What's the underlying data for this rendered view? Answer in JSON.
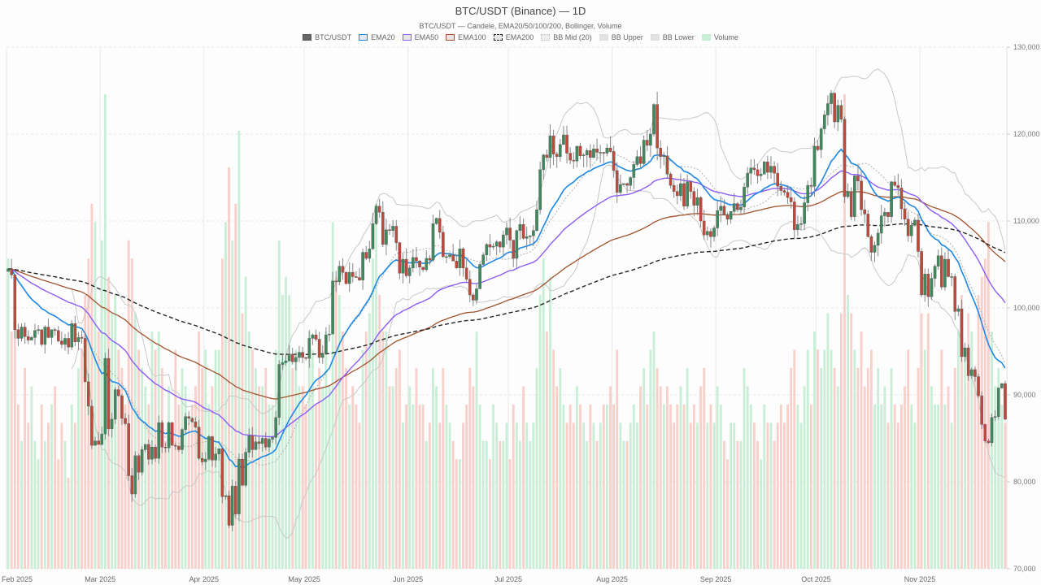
{
  "header": {
    "title": "BTC/USDT (Binance) — 1D",
    "subtitle": "BTC/USDT — Candele, EMA20/50/100/200, Bollinger, Volume"
  },
  "legend": [
    {
      "label": "BTC/USDT",
      "fill": "#666666",
      "border": "#555555",
      "style": "solid"
    },
    {
      "label": "EMA20",
      "fill": "#e6e6e6",
      "border": "#1e88e5",
      "style": "solid"
    },
    {
      "label": "EMA50",
      "fill": "#e6e6e6",
      "border": "#8b5cf6",
      "style": "solid"
    },
    {
      "label": "EMA100",
      "fill": "#e6e6e6",
      "border": "#a0522d",
      "style": "solid"
    },
    {
      "label": "EMA200",
      "fill": "#e6e6e6",
      "border": "#222222",
      "style": "dashed"
    },
    {
      "label": "BB Mid (20)",
      "fill": "#eeeeee",
      "border": "#bbbbbb",
      "style": "dotted"
    },
    {
      "label": "BB Upper",
      "fill": "#e3e3e3",
      "border": "#dddddd",
      "style": "solid"
    },
    {
      "label": "BB Lower",
      "fill": "#e3e3e3",
      "border": "#dddddd",
      "style": "solid"
    },
    {
      "label": "Volume",
      "fill": "#c8efd6",
      "border": "#c8efd6",
      "style": "solid"
    }
  ],
  "colors": {
    "up": "#3f8a5c",
    "down": "#c0493b",
    "wick": "#888888",
    "vol_up": "#c8efd6",
    "vol_down": "#f9cfc9",
    "ema20": "#1e88e5",
    "ema50": "#8b5cf6",
    "ema100": "#a0522d",
    "ema200": "#222222",
    "bb": "#c8c8c8",
    "bb_mid": "#aaaaaa",
    "grid": "#e8e8e8"
  },
  "chart_data": {
    "type": "candlestick",
    "title": "BTC/USDT (Binance) — 1D",
    "subtitle": "BTC/USDT — Candele, EMA20/50/100/200, Bollinger, Volume",
    "xlabel": "",
    "ylabel": "",
    "ylim": [
      70000,
      130000
    ],
    "y_ticks": [
      "70,000",
      "80,000",
      "90,000",
      "100,000",
      "110,000",
      "120,000",
      "130,000"
    ],
    "y_tick_values": [
      70000,
      80000,
      90000,
      100000,
      110000,
      120000,
      130000
    ],
    "x_ticks": [
      {
        "label": "Feb 2025",
        "day": 0
      },
      {
        "label": "Mar 2025",
        "day": 28
      },
      {
        "label": "Apr 2025",
        "day": 59
      },
      {
        "label": "May 2025",
        "day": 89
      },
      {
        "label": "Jun 2025",
        "day": 120
      },
      {
        "label": "Jul 2025",
        "day": 150
      },
      {
        "label": "Aug 2025",
        "day": 181
      },
      {
        "label": "Sep 2025",
        "day": 212
      },
      {
        "label": "Oct 2025",
        "day": 242
      },
      {
        "label": "Nov 2025",
        "day": 273
      }
    ],
    "start_date": "2025-02-01",
    "grid": true,
    "legend_position": "top",
    "series_names": [
      "BTC/USDT",
      "EMA20",
      "EMA50",
      "EMA100",
      "EMA200",
      "BB Mid (20)",
      "BB Upper",
      "BB Lower",
      "Volume"
    ],
    "closes": [
      104500,
      103800,
      97500,
      96500,
      97800,
      96700,
      96300,
      96600,
      97400,
      97500,
      95800,
      97800,
      96600,
      97500,
      97400,
      96200,
      95800,
      96500,
      95500,
      98200,
      96100,
      96600,
      96500,
      91500,
      88700,
      84200,
      84700,
      84300,
      85500,
      94200,
      86100,
      87200,
      90600,
      89900,
      87300,
      86700,
      80700,
      78600,
      83000,
      81100,
      83700,
      84300,
      82600,
      84000,
      82700,
      86800,
      84000,
      83900,
      86800,
      84200,
      84100,
      83700,
      86000,
      87500,
      87300,
      86900,
      86300,
      82700,
      82300,
      82600,
      85200,
      82500,
      83200,
      83800,
      78300,
      78400,
      75000,
      79500,
      76300,
      82600,
      79600,
      83400,
      85300,
      83700,
      84600,
      84400,
      85000,
      84000,
      84900,
      85100,
      87400,
      93500,
      93700,
      93900,
      94700,
      93800,
      94300,
      94900,
      94300,
      94200,
      96500,
      96900,
      96400,
      94300,
      94800,
      96900,
      97000,
      103100,
      103000,
      104800,
      104100,
      102800,
      104100,
      103600,
      103500,
      103200,
      106400,
      105700,
      106800,
      109700,
      111700,
      111000,
      107300,
      109000,
      108900,
      109400,
      107500,
      104000,
      105600,
      103700,
      104600,
      105800,
      105400,
      104700,
      104400,
      105700,
      105500,
      109700,
      110300,
      108700,
      105900,
      105900,
      106100,
      105400,
      104600,
      106800,
      104600,
      103300,
      101500,
      100900,
      102200,
      105000,
      106100,
      107300,
      107000,
      107100,
      107600,
      107000,
      108400,
      109200,
      107800,
      105700,
      108900,
      109600,
      108000,
      108200,
      108300,
      108900,
      111300,
      115900,
      117600,
      117300,
      119800,
      117700,
      117400,
      118800,
      119900,
      117800,
      117000,
      116900,
      118600,
      117500,
      117600,
      118100,
      117300,
      118300,
      117900,
      117900,
      117800,
      118400,
      118000,
      115800,
      113300,
      114200,
      114300,
      114100,
      115000,
      116500,
      117400,
      116600,
      119300,
      118700,
      120000,
      123400,
      118400,
      117400,
      117500,
      115400,
      114100,
      113400,
      112900,
      114300,
      111700,
      114500,
      113400,
      111800,
      112700,
      110000,
      108400,
      108800,
      108200,
      109200,
      111200,
      111700,
      110700,
      110200,
      111100,
      112000,
      111300,
      111600,
      113900,
      115500,
      116100,
      115900,
      115200,
      115400,
      116800,
      115600,
      116300,
      115500,
      114000,
      113500,
      113300,
      112700,
      112200,
      109000,
      109600,
      109700,
      112100,
      114100,
      114000,
      118600,
      118200,
      120600,
      122200,
      123500,
      124700,
      121400,
      123300,
      121700,
      112800,
      113400,
      110500,
      115200,
      114600,
      111300,
      110800,
      108200,
      106400,
      107200,
      108600,
      110600,
      111000,
      110500,
      114500,
      114100,
      113800,
      111400,
      110200,
      108300,
      109500,
      110100,
      106500,
      101500,
      103900,
      101300,
      103400,
      104800,
      106000,
      102400,
      105600,
      103600,
      103600,
      99600,
      99900,
      94400,
      95400,
      92200,
      92900,
      92100,
      89900,
      86600,
      84700,
      84500,
      87400,
      87500,
      90800,
      91300,
      87200
    ],
    "opens_offset_note": "open = previous close",
    "highs_extra_pct": 0.012,
    "lows_extra_pct": 0.012,
    "volumes": [
      17,
      13,
      15,
      9,
      7,
      11,
      8,
      10,
      7,
      6,
      9,
      7,
      8,
      9,
      10,
      6,
      8,
      7,
      5,
      9,
      8,
      11,
      12,
      15,
      17,
      20,
      19,
      13,
      18,
      26,
      16,
      14,
      15,
      12,
      11,
      9,
      18,
      17,
      14,
      12,
      11,
      10,
      9,
      13,
      12,
      13,
      11,
      7,
      10,
      8,
      12,
      9,
      11,
      10,
      8,
      9,
      10,
      13,
      11,
      12,
      9,
      10,
      12,
      12,
      17,
      19,
      22,
      18,
      20,
      24,
      14,
      16,
      13,
      12,
      11,
      10,
      10,
      11,
      9,
      9,
      12,
      18,
      15,
      16,
      15,
      11,
      12,
      10,
      10,
      9,
      13,
      12,
      9,
      11,
      10,
      13,
      10,
      19,
      16,
      15,
      13,
      11,
      9,
      10,
      9,
      8,
      12,
      13,
      14,
      17,
      20,
      15,
      13,
      13,
      10,
      10,
      11,
      12,
      8,
      9,
      10,
      9,
      11,
      9,
      9,
      7,
      8,
      11,
      10,
      8,
      11,
      9,
      8,
      7,
      6,
      6,
      8,
      9,
      11,
      10,
      13,
      9,
      7,
      7,
      6,
      9,
      8,
      7,
      7,
      8,
      6,
      9,
      8,
      7,
      10,
      8,
      7,
      8,
      11,
      15,
      17,
      13,
      16,
      12,
      10,
      11,
      9,
      8,
      9,
      8,
      10,
      9,
      8,
      7,
      9,
      8,
      7,
      8,
      9,
      9,
      10,
      9,
      12,
      8,
      7,
      7,
      8,
      9,
      8,
      10,
      11,
      9,
      12,
      13,
      11,
      10,
      9,
      10,
      9,
      8,
      9,
      10,
      9,
      11,
      8,
      9,
      8,
      10,
      11,
      8,
      9,
      8,
      10,
      9,
      7,
      6,
      8,
      8,
      7,
      7,
      11,
      10,
      9,
      8,
      7,
      6,
      9,
      8,
      8,
      7,
      8,
      9,
      8,
      9,
      11,
      12,
      9,
      8,
      10,
      12,
      9,
      13,
      12,
      11,
      12,
      14,
      12,
      11,
      10,
      14,
      26,
      15,
      14,
      12,
      11,
      13,
      10,
      11,
      12,
      9,
      11,
      9,
      10,
      8,
      11,
      9,
      8,
      9,
      10,
      12,
      9,
      8,
      11,
      14,
      12,
      14,
      10,
      9,
      9,
      12,
      9,
      10,
      8,
      11,
      13,
      15,
      12,
      14,
      13,
      11,
      15,
      16,
      17,
      19,
      13,
      10,
      11,
      9,
      8
    ]
  },
  "axis": {
    "y_labels": [
      "130,000",
      "120,000",
      "110,000",
      "100,000",
      "90,000",
      "80,000",
      "70,000"
    ],
    "x_labels": [
      "Feb 2025",
      "Mar 2025",
      "Apr 2025",
      "May 2025",
      "Jun 2025",
      "Jul 2025",
      "Aug 2025",
      "Sep 2025",
      "Oct 2025",
      "Nov 2025"
    ]
  }
}
